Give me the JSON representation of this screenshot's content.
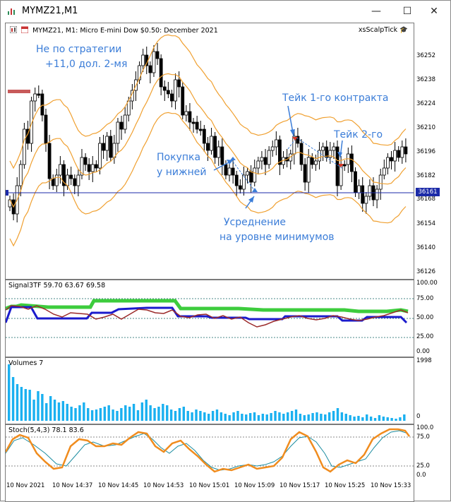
{
  "window": {
    "title": "MYMZ21,M1",
    "minimize_glyph": "—",
    "maximize_glyph": "☐",
    "close_glyph": "✕"
  },
  "main_chart": {
    "header": "MYMZ21, M1:  Micro E-mini Dow $0.50: December 2021",
    "indicator_name": "xsScalpTick",
    "current_price": "36161",
    "price_ticks": [
      "36252",
      "36238",
      "36224",
      "36210",
      "36196",
      "36182",
      "36168",
      "36154",
      "36140",
      "36126"
    ],
    "annotations": {
      "strategy_line1": "Не по стратегии",
      "strategy_line2": "+11,0 дол. 2-мя",
      "take1": "Тейк 1-го контракта",
      "take2": "Тейк 2-го",
      "buy_line1": "Покупка",
      "buy_line2": "у нижней",
      "avg_line1": "Усреднение",
      "avg_line2": "на уровне минимумов"
    },
    "colors": {
      "bands": "#f0a030",
      "price_line": "#1b2aa8",
      "annotation": "#3b7dd8"
    }
  },
  "signal_pane": {
    "title": "Signal3TF 59.70 63.67 69.58",
    "ticks": [
      "100.00",
      "75.00",
      "50.00",
      "25.00",
      "0.00"
    ],
    "colors": {
      "green": "#3dcc3d",
      "blue": "#1a1acc",
      "red": "#9b2a2a"
    }
  },
  "volume_pane": {
    "title": "Volumes 7",
    "ticks": [
      "1998",
      "0"
    ],
    "color": "#1ab0f0"
  },
  "stoch_pane": {
    "title": "Stoch(5,4,3) 78.1 83.6",
    "ticks": [
      "100.0",
      "75.0",
      "25.0",
      "0.0"
    ],
    "colors": {
      "main": "#f08c1e",
      "signal": "#1b8ca0"
    }
  },
  "time_axis": [
    "10 Nov 2021",
    "10 Nov 14:37",
    "10 Nov 14:45",
    "10 Nov 14:53",
    "10 Nov 15:01",
    "10 Nov 15:09",
    "10 Nov 15:17",
    "10 Nov 15:25",
    "10 Nov 15:33"
  ]
}
